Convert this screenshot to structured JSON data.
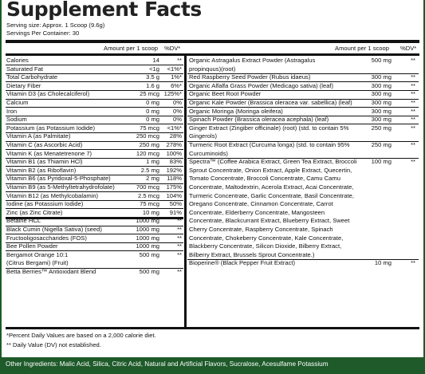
{
  "title": "Supplement Facts",
  "serving_size": "Serving size: Approx. 1 Scoop (9.6g)",
  "servings_per_container": "Servings Per Container: 30",
  "left_header": {
    "amount": "Amount per 1 scoop",
    "dv": "%DV*"
  },
  "right_header": {
    "amount": "Amount per 1 scoop",
    "dv": "%DV*"
  },
  "left_rows": [
    {
      "name": "Calories",
      "amount": "14",
      "dv": "**"
    },
    {
      "name": "Saturated Fat",
      "amount": "<1g",
      "dv": "<1%*"
    },
    {
      "name": "Total Carbohydrate",
      "amount": "3.5 g",
      "dv": "1%*"
    },
    {
      "name": "Dietary Fiber",
      "amount": "1.6 g",
      "dv": "6%*"
    },
    {
      "name": "Vitamin D3 (as Cholecalciferol)",
      "amount": "25 mcg",
      "dv": "125%*"
    },
    {
      "name": "Calcium",
      "amount": "0 mg",
      "dv": "0%"
    },
    {
      "name": "Iron",
      "amount": "0 mg",
      "dv": "0%"
    },
    {
      "name": "Sodium",
      "amount": "0 mg",
      "dv": "0%"
    },
    {
      "name": "Potassium (as Potassium Iodide)",
      "amount": "75 mcg",
      "dv": "<1%*"
    },
    {
      "name": "Vitamin A (as Palmitate)",
      "amount": "250 mcg",
      "dv": "28%"
    },
    {
      "name": "Vitamin C (as Ascorbic Acid)",
      "amount": "250 mg",
      "dv": "278%"
    },
    {
      "name": "Vitamin K (as Menatetrenone 7)",
      "amount": "120 mcg",
      "dv": "100%"
    },
    {
      "name": "Vitamin B1 (as Thiamin HCl)",
      "amount": "1 mg",
      "dv": "83%"
    },
    {
      "name": "Vitamin B2 (as Riboflavin)",
      "amount": "2.5 mg",
      "dv": "192%"
    },
    {
      "name": "Vitamin B6 (as Pyridoxal-5-Phosphate)",
      "amount": "2 mg",
      "dv": "118%"
    },
    {
      "name": "Vitamin B9 (as 5-Methyltetrahydrofolate)",
      "amount": "700 mcg",
      "dv": "175%"
    },
    {
      "name": "Vitamin B12 (as Methylcobalamin)",
      "amount": "2.5 mcg",
      "dv": "104%"
    },
    {
      "name": "Iodine (as Potassium Iodide)",
      "amount": "75 mcg",
      "dv": "50%"
    },
    {
      "name": "Zinc (as Zinc Citrate)",
      "amount": "10 mg",
      "dv": "91%"
    },
    {
      "name": "Betaine HCL",
      "amount": "1000 mg",
      "dv": "**"
    },
    {
      "name": "Black Cumin (Nigella Sativa) (seed)",
      "amount": "1000 mg",
      "dv": "**"
    },
    {
      "name": "Fructooligosaccharides (FOS)",
      "amount": "1000 mg",
      "dv": "**"
    },
    {
      "name": "Bee Pollen Powder",
      "amount": "1000 mg",
      "dv": "**"
    },
    {
      "name": "Bergamot Orange 10:1",
      "amount": "500 mg",
      "dv": "**"
    },
    {
      "name": "(Citrus Bergami) (Fruit)",
      "amount": "",
      "dv": ""
    },
    {
      "name": "Betta Berries™ Antioxidant Blend",
      "amount": "500 mg",
      "dv": "**"
    }
  ],
  "right_rows": [
    {
      "lines": [
        "Organic Astragalus Extract Powder (Astragalus",
        "propinquus)(root)"
      ],
      "amount": "500 mg",
      "dv": "**"
    },
    {
      "lines": [
        "Red Raspberry Seed Powder (Rubus idaeus)"
      ],
      "amount": "300 mg",
      "dv": "**"
    },
    {
      "lines": [
        "Organic Alfalfa Grass Powder (Medicago sativa) (leaf)"
      ],
      "amount": "300 mg",
      "dv": "**"
    },
    {
      "lines": [
        "Organic Beet Root Powder"
      ],
      "amount": "300 mg",
      "dv": "**"
    },
    {
      "lines": [
        "Organic Kale Powder (Brassica oleracea var. sabellica) (leaf)"
      ],
      "amount": "300 mg",
      "dv": "**"
    },
    {
      "lines": [
        "Organic Moringa (Moringa oleifera)"
      ],
      "amount": "300 mg",
      "dv": "**"
    },
    {
      "lines": [
        "Spinach Powder (Brassica oleracea acephala) (leaf)"
      ],
      "amount": "300 mg",
      "dv": "**"
    },
    {
      "lines": [
        "Ginger Extract (Zingiber officinale) (root) (std. to contain 5%",
        "Gingerols)"
      ],
      "amount": "250 mg",
      "dv": "**"
    },
    {
      "lines": [
        "Turmeric Root Extract (Curcuma longa) (std. to contain 95%",
        "Curcuminoids)"
      ],
      "amount": "250 mg",
      "dv": "**"
    },
    {
      "lines": [
        "Spectra™ (Coffee Arabica Extract, Green Tea Extract, Broccoli",
        "Sprout Concentrate, Onion Extract, Apple Extract, Quecertin,",
        "Tomato Concentrate, Broccoli Concentrate, Camu Camu",
        "Concentrate, Maltodextrin, Acerola Extract, Acai Concentrate,",
        "Turmeric Concentrate, Garlic Concentrate, Basil Concentrate,",
        "Oregano Concentrate, Cinnamon Concentrate, Carrot",
        "Concentrate, Elderberry Concentrate, Mangosteen",
        "Concentrate, Blackcurrant Extract, Blueberry Extract, Sweet",
        "Cherry Concentrate, Raspberry Concentrate, Spinach",
        "Concentrate, Chokeberry Concentrate, Kale Concentrate,",
        "Blackberry Concentrate, Silicon Dioxide, Bilberry Extract,",
        "Bilberry Extract, Brussels Sprout Concentrate.)"
      ],
      "amount": "100 mg",
      "dv": "**"
    },
    {
      "lines": [
        "Bioperine® (Black Pepper Fruit Extract)"
      ],
      "amount": "10 mg",
      "dv": "**"
    }
  ],
  "footnote_1": "*Percent Daily Values are based on a 2,000 calorie diet.",
  "footnote_2": "** Daily Value (DV) not established.",
  "other_ingredients": "Other Ingredients: Malic Acid, Silica, Citric Acid, Natural and Artificial Flavors, Sucralose, Acesulfame Potassium",
  "colors": {
    "background": "#1e5a2a",
    "panel": "#ffffff",
    "text": "#111111"
  }
}
